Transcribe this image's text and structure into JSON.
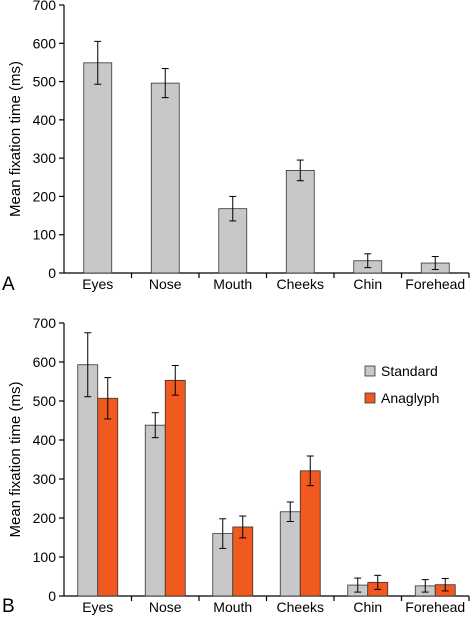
{
  "chart_data": [
    {
      "panel_label": "A",
      "type": "bar",
      "ylabel": "Mean fixation time (ms)",
      "ylim": [
        0,
        700
      ],
      "yticks": [
        0,
        100,
        200,
        300,
        400,
        500,
        600,
        700
      ],
      "categories": [
        "Eyes",
        "Nose",
        "Mouth",
        "Cheeks",
        "Chin",
        "Forehead"
      ],
      "grid": false,
      "legend": null,
      "series": [
        {
          "values": [
            549,
            496,
            168,
            268,
            32,
            26
          ],
          "errors": [
            56,
            38,
            32,
            27,
            18,
            17
          ],
          "color": "#c8c8c8"
        }
      ]
    },
    {
      "panel_label": "B",
      "type": "bar",
      "ylabel": "Mean fixation time (ms)",
      "ylim": [
        0,
        700
      ],
      "yticks": [
        0,
        100,
        200,
        300,
        400,
        500,
        600,
        700
      ],
      "categories": [
        "Eyes",
        "Nose",
        "Mouth",
        "Cheeks",
        "Chin",
        "Forehead"
      ],
      "grid": false,
      "legend": "right",
      "series": [
        {
          "name": "Standard",
          "values": [
            593,
            438,
            160,
            216,
            28,
            26
          ],
          "errors": [
            82,
            32,
            38,
            25,
            18,
            16
          ],
          "color": "#c8c8c8"
        },
        {
          "name": "Anaglyph",
          "values": [
            507,
            553,
            177,
            321,
            35,
            29
          ],
          "errors": [
            53,
            38,
            28,
            38,
            18,
            16
          ],
          "color": "#f05a1e"
        }
      ]
    }
  ]
}
